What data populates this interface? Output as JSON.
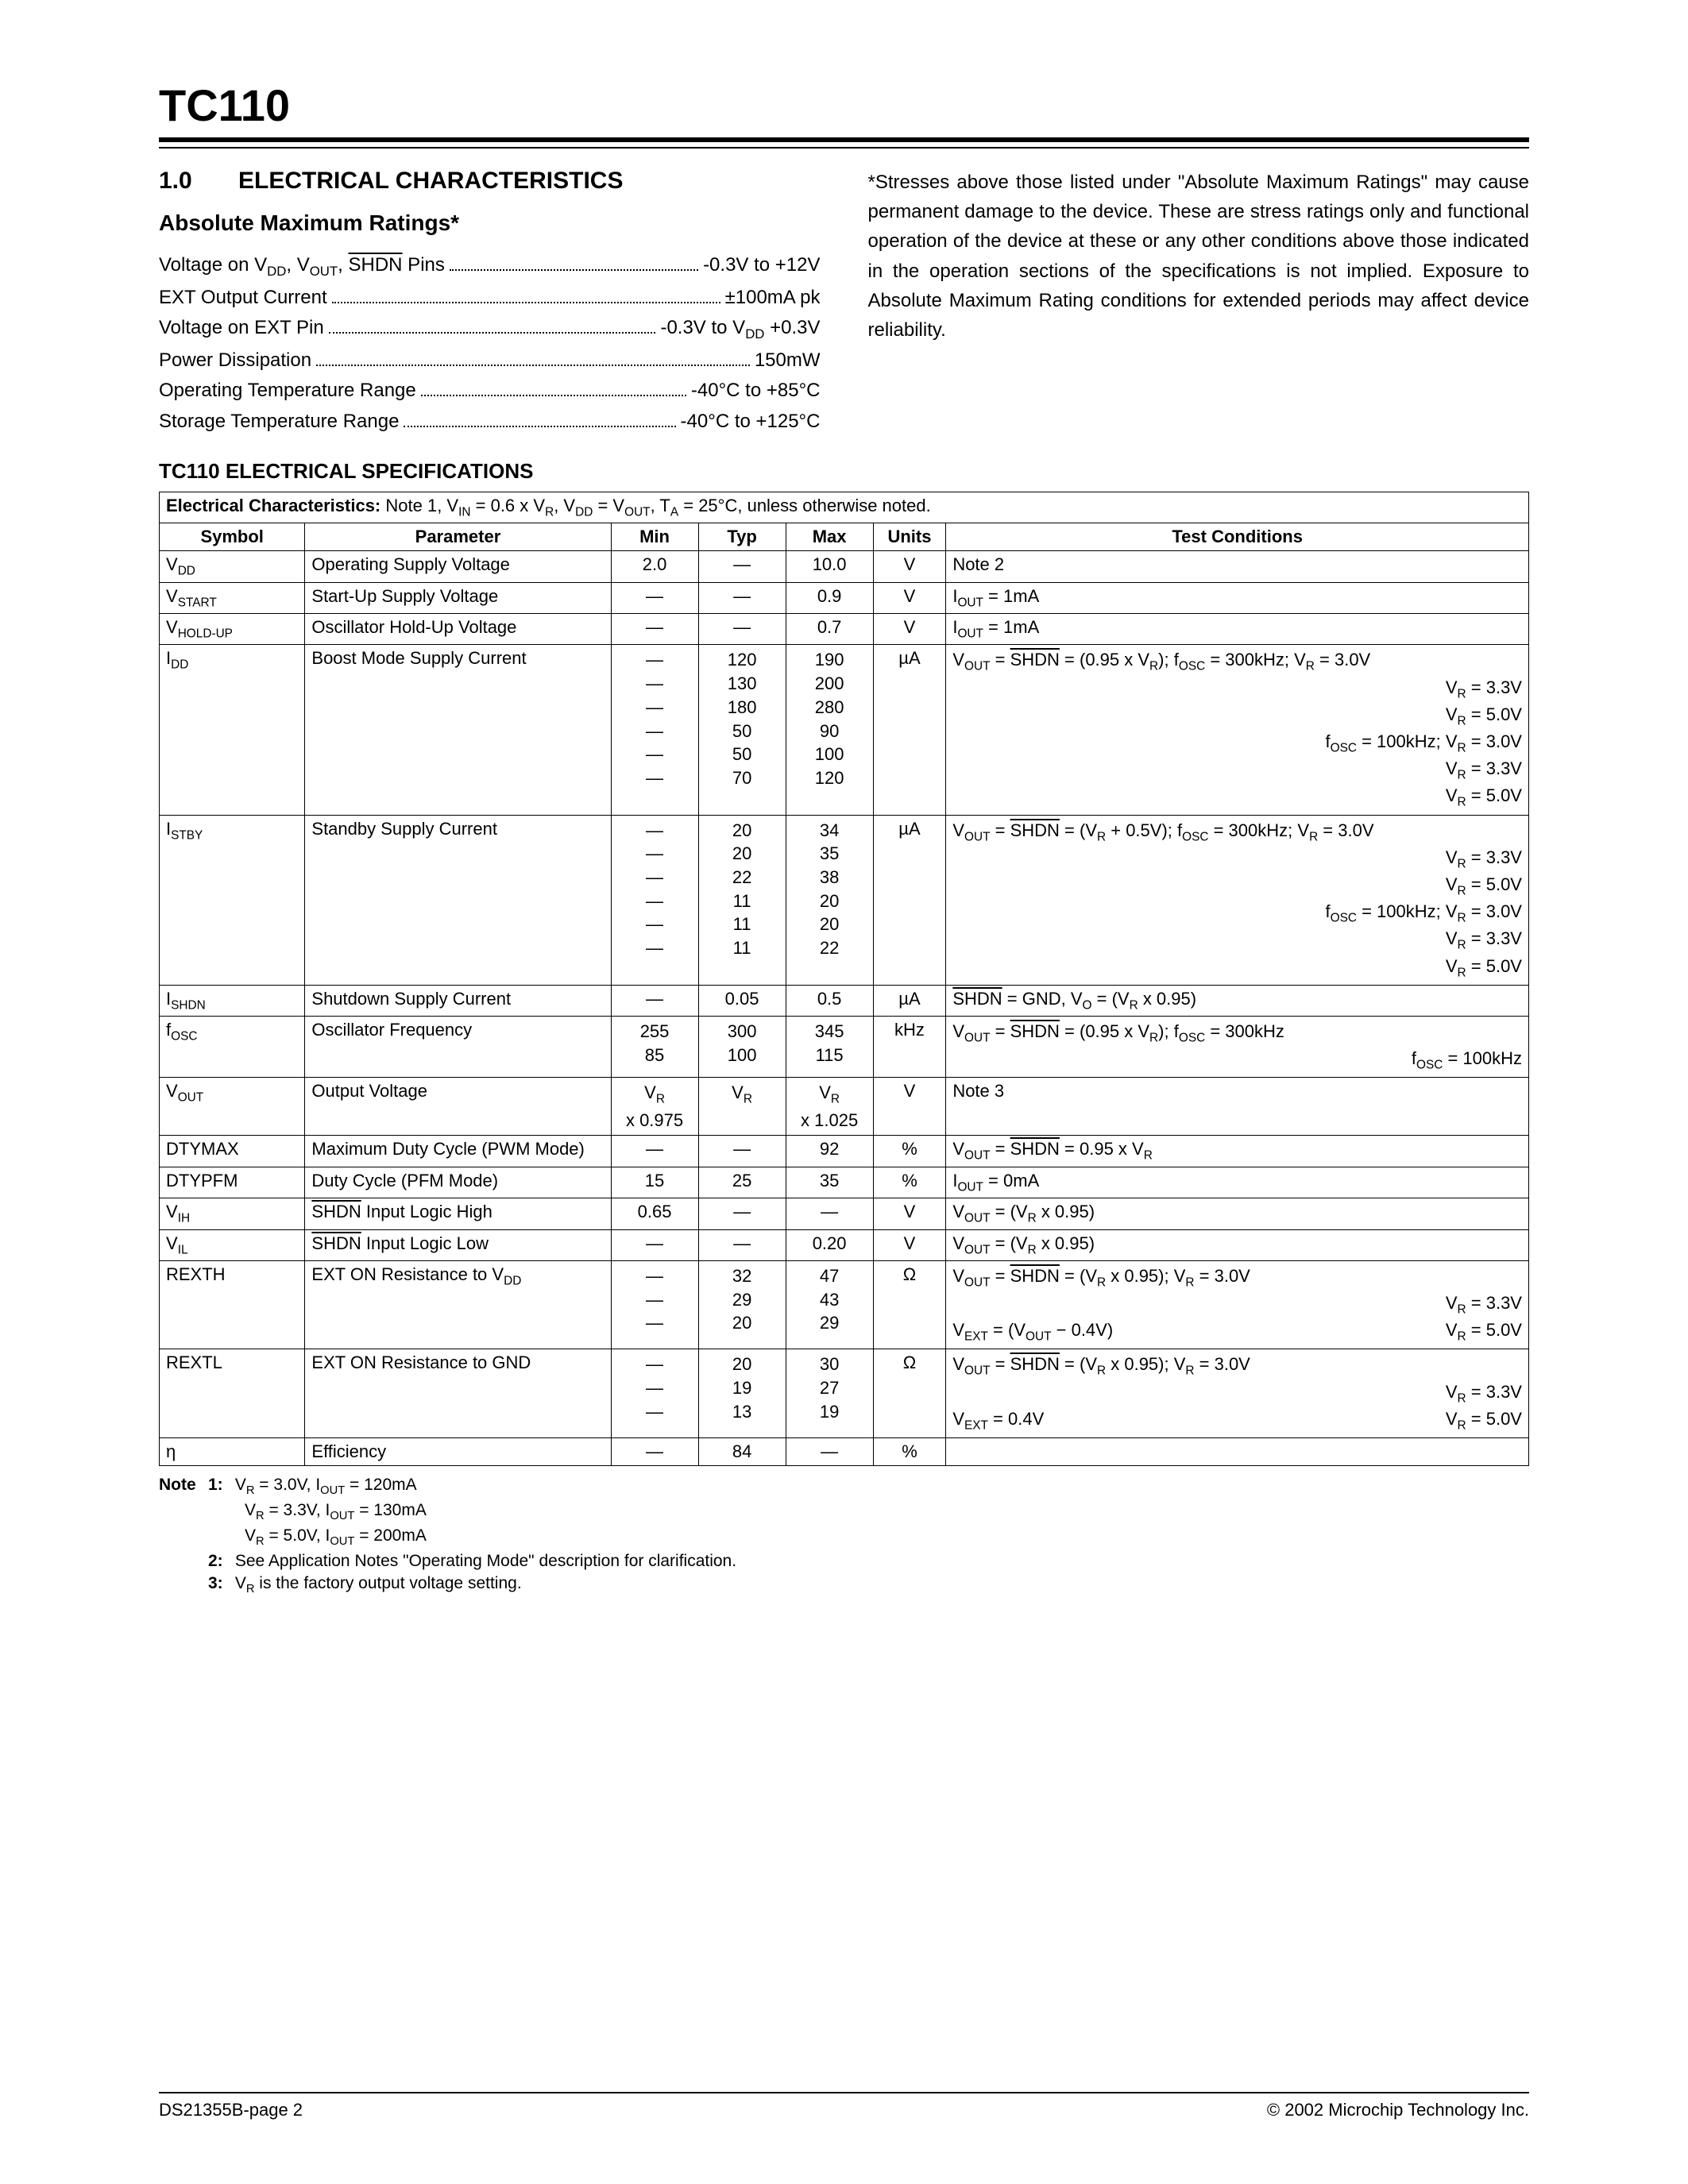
{
  "header": {
    "title": "TC110"
  },
  "section": {
    "num": "1.0",
    "title": "ELECTRICAL CHARACTERISTICS",
    "sub": "Absolute Maximum Ratings*"
  },
  "ratings": [
    {
      "label_html": "Voltage on V<sub>DD</sub>, V<sub>OUT</sub>, <span class='overline'>SHDN</span> Pins",
      "value": "-0.3V to +12V"
    },
    {
      "label_html": "EXT Output Current",
      "value": "±100mA pk"
    },
    {
      "label_html": "Voltage on EXT Pin",
      "value_html": "-0.3V to V<sub>DD</sub> +0.3V"
    },
    {
      "label_html": "Power Dissipation",
      "value": "150mW"
    },
    {
      "label_html": "Operating Temperature Range",
      "value": "-40°C to +85°C"
    },
    {
      "label_html": "Storage Temperature Range",
      "value": "-40°C to +125°C"
    }
  ],
  "disclaimer": "*Stresses above those listed under \"Absolute Maximum Ratings\" may cause permanent damage to the device. These are stress ratings only and functional operation of the device at these or any other conditions above those indicated in the operation sections of the specifications is not implied. Exposure to Absolute Maximum Rating conditions for extended periods may affect device reliability.",
  "spec_title": "TC110 ELECTRICAL SPECIFICATIONS",
  "spec_caption_html": "<span class='caption-label'>Electrical Characteristics:</span> Note 1, V<sub>IN</sub> = 0.6 x V<sub>R</sub>, V<sub>DD</sub> = V<sub>OUT</sub>, T<sub>A</sub> = 25°C, unless otherwise noted.",
  "spec_headers": [
    "Symbol",
    "Parameter",
    "Min",
    "Typ",
    "Max",
    "Units",
    "Test Conditions"
  ],
  "spec_rows": [
    {
      "sym_html": "V<sub>DD</sub>",
      "param": "Operating Supply Voltage",
      "min": "2.0",
      "typ": "—",
      "max": "10.0",
      "unit": "V",
      "cond_html": "Note 2"
    },
    {
      "sym_html": "V<sub>START</sub>",
      "param": "Start-Up Supply Voltage",
      "min": "—",
      "typ": "—",
      "max": "0.9",
      "unit": "V",
      "cond_html": "I<sub>OUT</sub> = 1mA"
    },
    {
      "sym_html": "V<sub>HOLD-UP</sub>",
      "param": "Oscillator Hold-Up Voltage",
      "min": "—",
      "typ": "—",
      "max": "0.7",
      "unit": "V",
      "cond_html": "I<sub>OUT</sub> = 1mA"
    },
    {
      "sym_html": "I<sub>DD</sub>",
      "param": "Boost Mode Supply Current",
      "min_lines": [
        "—",
        "—",
        "—",
        "—",
        "—",
        "—"
      ],
      "typ_lines": [
        "120",
        "130",
        "180",
        "50",
        "50",
        "70"
      ],
      "max_lines": [
        "190",
        "200",
        "280",
        "90",
        "100",
        "120"
      ],
      "unit": "µA",
      "cond_lines_html": [
        "V<sub>OUT</sub> = <span class='overline'>SHDN</span> = (0.95 x V<sub>R</sub>); f<sub>OSC</sub> = 300kHz; V<sub>R</sub> = 3.0V",
        "<span class='cond-right'>V<sub>R</sub> = 3.3V</span>",
        "<span class='cond-right'>V<sub>R</sub> = 5.0V</span>",
        "<span class='cond-right'>f<sub>OSC</sub> = 100kHz; V<sub>R</sub> = 3.0V</span>",
        "<span class='cond-right'>V<sub>R</sub> = 3.3V</span>",
        "<span class='cond-right'>V<sub>R</sub> = 5.0V</span>"
      ]
    },
    {
      "sym_html": "I<sub>STBY</sub>",
      "param": "Standby Supply Current",
      "min_lines": [
        "—",
        "—",
        "—",
        "—",
        "—",
        "—"
      ],
      "typ_lines": [
        "20",
        "20",
        "22",
        "11",
        "11",
        "11"
      ],
      "max_lines": [
        "34",
        "35",
        "38",
        "20",
        "20",
        "22"
      ],
      "unit": "µA",
      "cond_lines_html": [
        "V<sub>OUT</sub> = <span class='overline'>SHDN</span> = (V<sub>R</sub> + 0.5V); f<sub>OSC</sub> = 300kHz; V<sub>R</sub> = 3.0V",
        "<span class='cond-right'>V<sub>R</sub> = 3.3V</span>",
        "<span class='cond-right'>V<sub>R</sub> = 5.0V</span>",
        "<span class='cond-right'>f<sub>OSC</sub> = 100kHz; V<sub>R</sub> = 3.0V</span>",
        "<span class='cond-right'>V<sub>R</sub> = 3.3V</span>",
        "<span class='cond-right'>V<sub>R</sub> = 5.0V</span>"
      ]
    },
    {
      "sym_html": "I<sub>SHDN</sub>",
      "param": "Shutdown Supply Current",
      "min": "—",
      "typ": "0.05",
      "max": "0.5",
      "unit": "µA",
      "cond_html": "<span class='overline'>SHDN</span> = GND, V<sub>O</sub> = (V<sub>R</sub> x 0.95)"
    },
    {
      "sym_html": "f<sub>OSC</sub>",
      "param": "Oscillator Frequency",
      "min_lines": [
        "255",
        "85"
      ],
      "typ_lines": [
        "300",
        "100"
      ],
      "max_lines": [
        "345",
        "115"
      ],
      "unit": "kHz",
      "cond_lines_html": [
        "V<sub>OUT</sub> = <span class='overline'>SHDN</span> = (0.95 x V<sub>R</sub>); f<sub>OSC</sub> = 300kHz",
        "<span class='cond-right'>f<sub>OSC</sub> = 100kHz</span>"
      ]
    },
    {
      "sym_html": "V<sub>OUT</sub>",
      "param": "Output Voltage",
      "min_lines_html": [
        "V<sub>R</sub>",
        "x 0.975"
      ],
      "typ_lines_html": [
        "V<sub>R</sub>"
      ],
      "max_lines_html": [
        "V<sub>R</sub>",
        "x 1.025"
      ],
      "unit": "V",
      "cond_html": "Note 3"
    },
    {
      "sym_html": "DTYMAX",
      "param": "Maximum Duty Cycle (PWM Mode)",
      "min": "—",
      "typ": "—",
      "max": "92",
      "unit": "%",
      "cond_html": "V<sub>OUT</sub> = <span class='overline'>SHDN</span> = 0.95 x V<sub>R</sub>"
    },
    {
      "sym_html": "DTYPFM",
      "param": "Duty Cycle (PFM Mode)",
      "min": "15",
      "typ": "25",
      "max": "35",
      "unit": "%",
      "cond_html": "I<sub>OUT</sub> = 0mA"
    },
    {
      "sym_html": "V<sub>IH</sub>",
      "param_html": "<span class='overline'>SHDN</span> Input Logic High",
      "min": "0.65",
      "typ": "—",
      "max": "—",
      "unit": "V",
      "cond_html": "V<sub>OUT</sub> = (V<sub>R</sub> x 0.95)"
    },
    {
      "sym_html": "V<sub>IL</sub>",
      "param_html": "<span class='overline'>SHDN</span> Input Logic Low",
      "min": "—",
      "typ": "—",
      "max": "0.20",
      "unit": "V",
      "cond_html": "V<sub>OUT</sub> = (V<sub>R</sub> x 0.95)"
    },
    {
      "sym_html": "REXTH",
      "param_html": "EXT ON Resistance to V<sub>DD</sub>",
      "min_lines": [
        "—",
        "—",
        "—"
      ],
      "typ_lines": [
        "32",
        "29",
        "20"
      ],
      "max_lines": [
        "47",
        "43",
        "29"
      ],
      "unit": "Ω",
      "cond_lines_html": [
        "V<sub>OUT</sub> = <span class='overline'>SHDN</span> = (V<sub>R</sub> x 0.95); V<sub>R</sub> = 3.0V",
        "<span class='cond-right'>V<sub>R</sub> = 3.3V</span>",
        "<div class='cond-split'><span>V<sub>EXT</sub> = (V<sub>OUT</sub> − 0.4V)</span><span>V<sub>R</sub> = 5.0V</span></div>"
      ]
    },
    {
      "sym_html": "REXTL",
      "param": "EXT ON Resistance to GND",
      "min_lines": [
        "—",
        "—",
        "—"
      ],
      "typ_lines": [
        "20",
        "19",
        "13"
      ],
      "max_lines": [
        "30",
        "27",
        "19"
      ],
      "unit": "Ω",
      "cond_lines_html": [
        "V<sub>OUT</sub> = <span class='overline'>SHDN</span> = (V<sub>R</sub> x 0.95); V<sub>R</sub> = 3.0V",
        "<span class='cond-right'>V<sub>R</sub> = 3.3V</span>",
        "<div class='cond-split'><span>V<sub>EXT</sub> = 0.4V</span><span>V<sub>R</sub> = 5.0V</span></div>"
      ]
    },
    {
      "sym_html": "η",
      "param": "Efficiency",
      "min": "—",
      "typ": "84",
      "max": "—",
      "unit": "%",
      "cond_html": ""
    }
  ],
  "notes": {
    "label": "Note",
    "items": [
      {
        "n": "1:",
        "lines_html": [
          "V<sub>R</sub> = 3.0V, I<sub>OUT</sub> = 120mA",
          "V<sub>R</sub> = 3.3V, I<sub>OUT</sub> = 130mA",
          "V<sub>R</sub> = 5.0V, I<sub>OUT</sub> = 200mA"
        ]
      },
      {
        "n": "2:",
        "lines_html": [
          "See Application Notes \"Operating Mode\" description for clarification."
        ]
      },
      {
        "n": "3:",
        "lines_html": [
          "V<sub>R</sub> is the factory output voltage setting."
        ]
      }
    ]
  },
  "footer": {
    "left": "DS21355B-page 2",
    "right": "© 2002 Microchip Technology Inc."
  }
}
